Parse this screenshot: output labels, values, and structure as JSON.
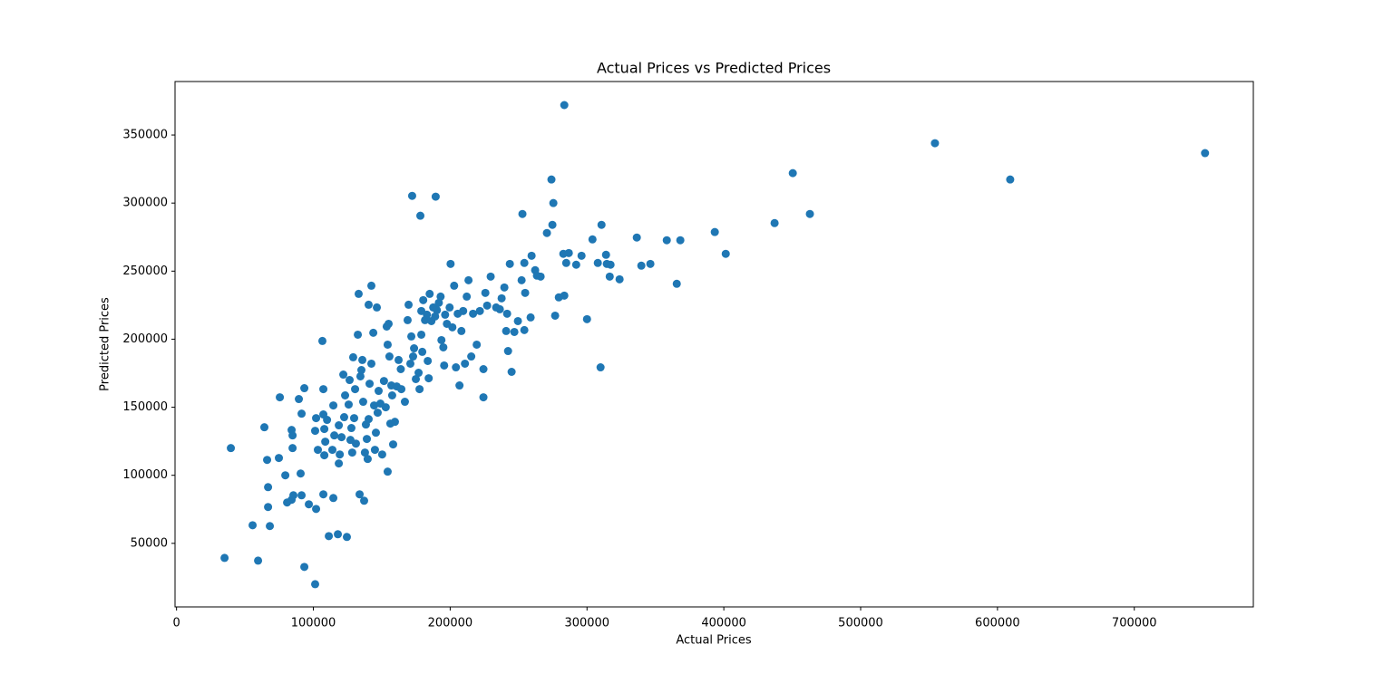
{
  "chart_data": {
    "type": "scatter",
    "title": "Actual Prices vs Predicted Prices",
    "x_label": "Actual Prices",
    "y_label": "Predicted Prices",
    "color": "#1f77b4",
    "xlim": [
      -1100,
      787000
    ],
    "ylim": [
      3300,
      389300
    ],
    "xticks": [
      0,
      100000,
      200000,
      300000,
      400000,
      500000,
      600000,
      700000
    ],
    "yticks": [
      50000,
      100000,
      150000,
      200000,
      250000,
      300000,
      350000
    ],
    "x": [
      35100,
      39700,
      59600,
      55600,
      64200,
      66200,
      66900,
      66900,
      68200,
      74800,
      75500,
      79500,
      80800,
      84100,
      84100,
      84800,
      84800,
      85400,
      89400,
      90700,
      91400,
      91400,
      93400,
      93400,
      96700,
      101300,
      102000,
      102000,
      101300,
      103300,
      106600,
      107300,
      107300,
      107300,
      108000,
      108700,
      110000,
      108000,
      111300,
      113900,
      114600,
      115300,
      114600,
      117900,
      118600,
      118600,
      119300,
      120600,
      121900,
      122500,
      123200,
      124500,
      125800,
      126500,
      127100,
      127800,
      128400,
      129100,
      129800,
      130500,
      131100,
      132500,
      133100,
      133800,
      134400,
      135100,
      135800,
      136400,
      137100,
      137700,
      138400,
      139100,
      139700,
      140400,
      140400,
      141100,
      142400,
      142400,
      143800,
      144400,
      145000,
      145700,
      146400,
      147000,
      147700,
      149000,
      150300,
      151600,
      152900,
      153600,
      154300,
      154300,
      155000,
      155600,
      156300,
      157000,
      157600,
      158300,
      159600,
      160900,
      162300,
      163900,
      164300,
      166900,
      168900,
      169600,
      170900,
      171600,
      172900,
      173600,
      174900,
      176900,
      177600,
      178200,
      172200,
      189400,
      178900,
      178900,
      179600,
      180300,
      181600,
      183000,
      183600,
      184300,
      185000,
      186300,
      187600,
      189000,
      190300,
      191700,
      193000,
      193600,
      195000,
      195600,
      196300,
      197600,
      199600,
      200300,
      201600,
      202900,
      204200,
      205500,
      206800,
      208200,
      209500,
      210800,
      212100,
      213400,
      215400,
      216700,
      219400,
      221700,
      224300,
      224300,
      225700,
      227000,
      229600,
      233600,
      236300,
      237600,
      239600,
      240900,
      241600,
      242300,
      243600,
      244900,
      246900,
      249500,
      252200,
      252800,
      254200,
      254200,
      254800,
      258800,
      259500,
      262100,
      263400,
      266100,
      270700,
      274000,
      274700,
      275400,
      276700,
      279400,
      282700,
      283400,
      284800,
      286700,
      283400,
      292100,
      296000,
      300000,
      304000,
      307900,
      309900,
      310600,
      313900,
      314500,
      316600,
      317200,
      323800,
      336400,
      339700,
      346300,
      358300,
      365600,
      368200,
      393400,
      401400,
      437100,
      450400,
      462900,
      554300,
      609300,
      751700
    ],
    "values": [
      39300,
      120000,
      37300,
      63300,
      135300,
      111300,
      91300,
      76700,
      62700,
      112700,
      157300,
      100000,
      80000,
      82000,
      133300,
      129300,
      120000,
      85300,
      156000,
      101300,
      145300,
      85300,
      164000,
      32700,
      78700,
      20000,
      75300,
      142000,
      132700,
      118700,
      198700,
      163300,
      144700,
      86000,
      134000,
      124700,
      140700,
      114700,
      55300,
      118700,
      83300,
      129300,
      151300,
      56700,
      108700,
      136700,
      115300,
      128000,
      174000,
      142700,
      158700,
      54700,
      152000,
      170000,
      126000,
      134700,
      116700,
      186700,
      142000,
      163300,
      123300,
      203300,
      233300,
      86000,
      172700,
      177300,
      184700,
      154000,
      81300,
      116700,
      137300,
      126700,
      112000,
      141300,
      225300,
      167300,
      239300,
      182000,
      204700,
      151300,
      118700,
      131300,
      223300,
      146000,
      162000,
      152700,
      115300,
      169300,
      150000,
      209300,
      196000,
      102700,
      211300,
      187300,
      138000,
      166000,
      158700,
      122700,
      139300,
      165300,
      184700,
      178000,
      163300,
      154000,
      214000,
      225300,
      182000,
      202000,
      187300,
      193300,
      170700,
      175300,
      163300,
      290700,
      305300,
      304700,
      203300,
      220700,
      190700,
      228700,
      214000,
      218000,
      184000,
      171300,
      233300,
      213300,
      223300,
      216700,
      221300,
      226700,
      231300,
      199300,
      194000,
      180700,
      218000,
      211300,
      223300,
      255300,
      208700,
      239300,
      179300,
      218700,
      166000,
      206000,
      220700,
      182000,
      231300,
      243300,
      187300,
      218700,
      196000,
      220700,
      178000,
      157300,
      234000,
      224700,
      246000,
      223300,
      222000,
      230000,
      238000,
      206000,
      218700,
      191300,
      255300,
      176000,
      205300,
      213300,
      243300,
      292000,
      256000,
      206700,
      234000,
      216000,
      261300,
      250700,
      246700,
      246000,
      278000,
      317300,
      284000,
      300000,
      217300,
      230700,
      262700,
      232000,
      256000,
      263300,
      372000,
      254700,
      261300,
      214700,
      273300,
      256000,
      179300,
      284000,
      262000,
      255300,
      246000,
      254700,
      244000,
      274700,
      254000,
      255300,
      272700,
      240700,
      272700,
      278700,
      262700,
      285300,
      322000,
      292000,
      344000,
      317300,
      336700
    ]
  }
}
